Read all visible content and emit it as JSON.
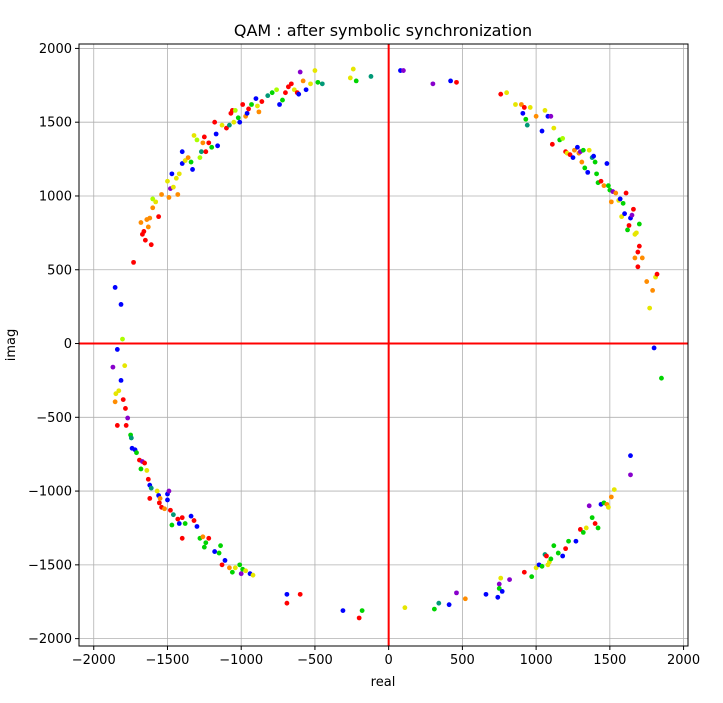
{
  "chart_data": {
    "type": "scatter",
    "title": "QAM : after symbolic synchronization",
    "xlabel": "real",
    "ylabel": "imag",
    "xlim": [
      -2100,
      2030
    ],
    "ylim": [
      -2050,
      2030
    ],
    "xticks": [
      -2000,
      -1500,
      -1000,
      -500,
      0,
      500,
      1000,
      1500,
      2000
    ],
    "yticks": [
      -2000,
      -1500,
      -1000,
      -500,
      0,
      500,
      1000,
      1500,
      2000
    ],
    "xtick_labels": [
      "−2000",
      "−1500",
      "−1000",
      "−500",
      "0",
      "500",
      "1000",
      "1500",
      "2000"
    ],
    "ytick_labels": [
      "−2000",
      "−1500",
      "−1000",
      "−500",
      "0",
      "500",
      "1000",
      "1500",
      "2000"
    ],
    "grid": true,
    "reference_lines": {
      "x": 0,
      "y": 0,
      "color": "#ff0000"
    },
    "point_colors": [
      "#ff0000",
      "#0000ff",
      "#00d400",
      "#ff8c00",
      "#e6e600",
      "#8800cc",
      "#009977",
      "#aaff00"
    ],
    "points": [
      [
        -1870,
        -160,
        5
      ],
      [
        -1855,
        -395,
        3
      ],
      [
        -1850,
        -340,
        4
      ],
      [
        -1840,
        -555,
        0
      ],
      [
        -1830,
        -320,
        4
      ],
      [
        -1815,
        -250,
        1
      ],
      [
        -1800,
        -380,
        0
      ],
      [
        -1785,
        -440,
        0
      ],
      [
        -1780,
        -555,
        0
      ],
      [
        -1770,
        -505,
        5
      ],
      [
        -1750,
        -620,
        2
      ],
      [
        -1745,
        -640,
        6
      ],
      [
        -1740,
        -710,
        1
      ],
      [
        -1720,
        -720,
        1
      ],
      [
        -1710,
        -740,
        2
      ],
      [
        -1690,
        -790,
        0
      ],
      [
        -1680,
        -850,
        2
      ],
      [
        -1670,
        -800,
        5
      ],
      [
        -1655,
        -810,
        0
      ],
      [
        -1640,
        -860,
        4
      ],
      [
        -1630,
        -920,
        0
      ],
      [
        -1620,
        -960,
        1
      ],
      [
        -1610,
        -980,
        6
      ],
      [
        -1620,
        -1050,
        0
      ],
      [
        -1570,
        -1000,
        4
      ],
      [
        -1560,
        -1030,
        1
      ],
      [
        -1555,
        -1080,
        0
      ],
      [
        -1550,
        -1050,
        3
      ],
      [
        -1540,
        -1110,
        0
      ],
      [
        -1520,
        -1120,
        3
      ],
      [
        -1500,
        -1020,
        1
      ],
      [
        -1500,
        -1060,
        1
      ],
      [
        -1490,
        -1000,
        5
      ],
      [
        -1480,
        -1130,
        0
      ],
      [
        -1470,
        -1230,
        2
      ],
      [
        -1460,
        -1160,
        6
      ],
      [
        -1430,
        -1190,
        0
      ],
      [
        -1420,
        -1220,
        1
      ],
      [
        -1400,
        -1180,
        0
      ],
      [
        -1400,
        -1320,
        0
      ],
      [
        -1380,
        -1220,
        2
      ],
      [
        -1340,
        -1170,
        1
      ],
      [
        -1320,
        -1200,
        0
      ],
      [
        -1300,
        -1240,
        1
      ],
      [
        -1280,
        -1320,
        2
      ],
      [
        -1260,
        -1310,
        3
      ],
      [
        -1250,
        -1380,
        2
      ],
      [
        -1240,
        -1350,
        2
      ],
      [
        -1220,
        -1320,
        0
      ],
      [
        -1180,
        -1410,
        1
      ],
      [
        -1150,
        -1420,
        2
      ],
      [
        -1140,
        -1370,
        2
      ],
      [
        -1130,
        -1500,
        0
      ],
      [
        -1110,
        -1470,
        1
      ],
      [
        -1080,
        -1520,
        3
      ],
      [
        -1060,
        -1550,
        2
      ],
      [
        -1040,
        -1520,
        4
      ],
      [
        -1010,
        -1500,
        2
      ],
      [
        -1000,
        -1560,
        5
      ],
      [
        -990,
        -1530,
        2
      ],
      [
        -970,
        -1540,
        4
      ],
      [
        -940,
        -1560,
        1
      ],
      [
        -920,
        -1570,
        4
      ],
      [
        -690,
        -1700,
        1
      ],
      [
        -690,
        -1760,
        0
      ],
      [
        -600,
        -1700,
        0
      ],
      [
        -310,
        -1810,
        1
      ],
      [
        -200,
        -1860,
        0
      ],
      [
        -180,
        -1810,
        2
      ],
      [
        110,
        -1790,
        4
      ],
      [
        310,
        -1800,
        2
      ],
      [
        340,
        -1760,
        6
      ],
      [
        410,
        -1770,
        1
      ],
      [
        460,
        -1690,
        5
      ],
      [
        520,
        -1730,
        3
      ],
      [
        660,
        -1700,
        1
      ],
      [
        740,
        -1720,
        1
      ],
      [
        750,
        -1630,
        5
      ],
      [
        750,
        -1660,
        2
      ],
      [
        760,
        -1590,
        4
      ],
      [
        770,
        -1680,
        1
      ],
      [
        820,
        -1600,
        5
      ],
      [
        920,
        -1550,
        0
      ],
      [
        970,
        -1580,
        2
      ],
      [
        1000,
        -1520,
        4
      ],
      [
        1020,
        -1500,
        1
      ],
      [
        1040,
        -1510,
        2
      ],
      [
        1060,
        -1430,
        6
      ],
      [
        1070,
        -1440,
        0
      ],
      [
        1080,
        -1500,
        4
      ],
      [
        1090,
        -1480,
        4
      ],
      [
        1100,
        -1460,
        2
      ],
      [
        1120,
        -1370,
        2
      ],
      [
        1150,
        -1420,
        2
      ],
      [
        1180,
        -1440,
        1
      ],
      [
        1200,
        -1390,
        0
      ],
      [
        1220,
        -1340,
        2
      ],
      [
        1270,
        -1340,
        1
      ],
      [
        1300,
        -1260,
        0
      ],
      [
        1320,
        -1280,
        2
      ],
      [
        1340,
        -1250,
        4
      ],
      [
        1360,
        -1100,
        5
      ],
      [
        1380,
        -1180,
        2
      ],
      [
        1400,
        -1220,
        0
      ],
      [
        1420,
        -1250,
        2
      ],
      [
        1440,
        -1090,
        1
      ],
      [
        1460,
        -1080,
        2
      ],
      [
        1480,
        -1090,
        3
      ],
      [
        1490,
        -1110,
        4
      ],
      [
        1510,
        -1040,
        3
      ],
      [
        1530,
        -990,
        4
      ],
      [
        1640,
        -890,
        5
      ],
      [
        1640,
        -760,
        1
      ],
      [
        1800,
        -30,
        1
      ],
      [
        1850,
        -235,
        2
      ],
      [
        -1855,
        380,
        1
      ],
      [
        -1840,
        -40,
        1
      ],
      [
        -1815,
        265,
        1
      ],
      [
        -1805,
        30,
        7
      ],
      [
        -1790,
        -150,
        4
      ],
      [
        -1730,
        550,
        0
      ],
      [
        -1680,
        820,
        3
      ],
      [
        -1670,
        740,
        0
      ],
      [
        -1660,
        760,
        0
      ],
      [
        -1650,
        700,
        0
      ],
      [
        -1640,
        840,
        3
      ],
      [
        -1630,
        790,
        3
      ],
      [
        -1620,
        850,
        3
      ],
      [
        -1610,
        670,
        0
      ],
      [
        -1600,
        920,
        3
      ],
      [
        -1560,
        860,
        0
      ],
      [
        -1600,
        980,
        7
      ],
      [
        -1580,
        960,
        4
      ],
      [
        -1540,
        1010,
        3
      ],
      [
        -1500,
        1100,
        4
      ],
      [
        -1490,
        990,
        3
      ],
      [
        -1480,
        1050,
        5
      ],
      [
        -1470,
        1150,
        1
      ],
      [
        -1460,
        1060,
        4
      ],
      [
        -1440,
        1120,
        4
      ],
      [
        -1430,
        1010,
        3
      ],
      [
        -1420,
        1150,
        4
      ],
      [
        -1400,
        1220,
        1
      ],
      [
        -1400,
        1300,
        1
      ],
      [
        -1380,
        1240,
        4
      ],
      [
        -1360,
        1260,
        3
      ],
      [
        -1340,
        1230,
        2
      ],
      [
        -1330,
        1180,
        1
      ],
      [
        -1320,
        1410,
        4
      ],
      [
        -1300,
        1380,
        7
      ],
      [
        -1280,
        1260,
        7
      ],
      [
        -1270,
        1300,
        6
      ],
      [
        -1260,
        1360,
        3
      ],
      [
        -1250,
        1400,
        0
      ],
      [
        -1240,
        1300,
        0
      ],
      [
        -1220,
        1360,
        0
      ],
      [
        -1200,
        1330,
        2
      ],
      [
        -1180,
        1500,
        0
      ],
      [
        -1170,
        1420,
        1
      ],
      [
        -1160,
        1340,
        1
      ],
      [
        -1130,
        1480,
        4
      ],
      [
        -1100,
        1460,
        0
      ],
      [
        -1080,
        1480,
        6
      ],
      [
        -1070,
        1560,
        0
      ],
      [
        -1060,
        1580,
        0
      ],
      [
        -1050,
        1500,
        4
      ],
      [
        -1040,
        1580,
        7
      ],
      [
        -1020,
        1530,
        2
      ],
      [
        -1010,
        1500,
        1
      ],
      [
        -990,
        1620,
        0
      ],
      [
        -970,
        1540,
        3
      ],
      [
        -960,
        1560,
        1
      ],
      [
        -950,
        1590,
        0
      ],
      [
        -930,
        1620,
        2
      ],
      [
        -900,
        1660,
        1
      ],
      [
        -890,
        1610,
        4
      ],
      [
        -880,
        1570,
        3
      ],
      [
        -860,
        1640,
        0
      ],
      [
        -820,
        1680,
        6
      ],
      [
        -790,
        1700,
        2
      ],
      [
        -760,
        1720,
        7
      ],
      [
        -740,
        1620,
        1
      ],
      [
        -720,
        1650,
        2
      ],
      [
        -700,
        1700,
        0
      ],
      [
        -680,
        1740,
        0
      ],
      [
        -660,
        1760,
        0
      ],
      [
        -640,
        1720,
        4
      ],
      [
        -620,
        1700,
        0
      ],
      [
        -610,
        1690,
        1
      ],
      [
        -600,
        1840,
        5
      ],
      [
        -580,
        1780,
        3
      ],
      [
        -560,
        1720,
        1
      ],
      [
        -530,
        1760,
        4
      ],
      [
        -500,
        1850,
        4
      ],
      [
        -480,
        1770,
        2
      ],
      [
        -450,
        1760,
        6
      ],
      [
        -260,
        1800,
        4
      ],
      [
        -240,
        1860,
        4
      ],
      [
        -220,
        1780,
        2
      ],
      [
        -120,
        1810,
        6
      ],
      [
        80,
        1850,
        1
      ],
      [
        100,
        1850,
        5
      ],
      [
        300,
        1760,
        5
      ],
      [
        420,
        1780,
        1
      ],
      [
        460,
        1770,
        0
      ],
      [
        760,
        1690,
        0
      ],
      [
        800,
        1700,
        4
      ],
      [
        860,
        1620,
        4
      ],
      [
        900,
        1620,
        3
      ],
      [
        910,
        1560,
        1
      ],
      [
        920,
        1600,
        0
      ],
      [
        930,
        1520,
        2
      ],
      [
        940,
        1480,
        6
      ],
      [
        960,
        1600,
        4
      ],
      [
        1000,
        1540,
        3
      ],
      [
        1040,
        1440,
        1
      ],
      [
        1060,
        1580,
        4
      ],
      [
        1080,
        1540,
        1
      ],
      [
        1100,
        1540,
        5
      ],
      [
        1120,
        1460,
        4
      ],
      [
        1110,
        1350,
        0
      ],
      [
        1160,
        1380,
        2
      ],
      [
        1180,
        1390,
        7
      ],
      [
        1200,
        1300,
        0
      ],
      [
        1210,
        1290,
        4
      ],
      [
        1230,
        1280,
        0
      ],
      [
        1250,
        1260,
        1
      ],
      [
        1260,
        1310,
        3
      ],
      [
        1280,
        1330,
        1
      ],
      [
        1290,
        1290,
        3
      ],
      [
        1300,
        1300,
        5
      ],
      [
        1320,
        1310,
        2
      ],
      [
        1310,
        1230,
        3
      ],
      [
        1330,
        1190,
        2
      ],
      [
        1350,
        1160,
        1
      ],
      [
        1360,
        1310,
        4
      ],
      [
        1380,
        1260,
        6
      ],
      [
        1390,
        1270,
        1
      ],
      [
        1400,
        1230,
        2
      ],
      [
        1410,
        1150,
        2
      ],
      [
        1420,
        1090,
        2
      ],
      [
        1440,
        1100,
        0
      ],
      [
        1460,
        1070,
        3
      ],
      [
        1480,
        1220,
        1
      ],
      [
        1490,
        1070,
        2
      ],
      [
        1500,
        1040,
        2
      ],
      [
        1510,
        960,
        3
      ],
      [
        1520,
        1030,
        5
      ],
      [
        1540,
        1020,
        3
      ],
      [
        1560,
        970,
        4
      ],
      [
        1570,
        980,
        1
      ],
      [
        1580,
        860,
        4
      ],
      [
        1590,
        950,
        2
      ],
      [
        1600,
        880,
        1
      ],
      [
        1610,
        1020,
        0
      ],
      [
        1620,
        770,
        2
      ],
      [
        1630,
        800,
        0
      ],
      [
        1640,
        850,
        1
      ],
      [
        1650,
        870,
        5
      ],
      [
        1660,
        910,
        0
      ],
      [
        1670,
        740,
        4
      ],
      [
        1680,
        750,
        4
      ],
      [
        1690,
        620,
        0
      ],
      [
        1700,
        660,
        0
      ],
      [
        1700,
        810,
        2
      ],
      [
        1690,
        520,
        0
      ],
      [
        1750,
        420,
        3
      ],
      [
        1770,
        240,
        4
      ],
      [
        1790,
        360,
        3
      ],
      [
        1810,
        450,
        4
      ],
      [
        1820,
        470,
        0
      ],
      [
        1670,
        580,
        3
      ],
      [
        1720,
        580,
        3
      ]
    ]
  }
}
